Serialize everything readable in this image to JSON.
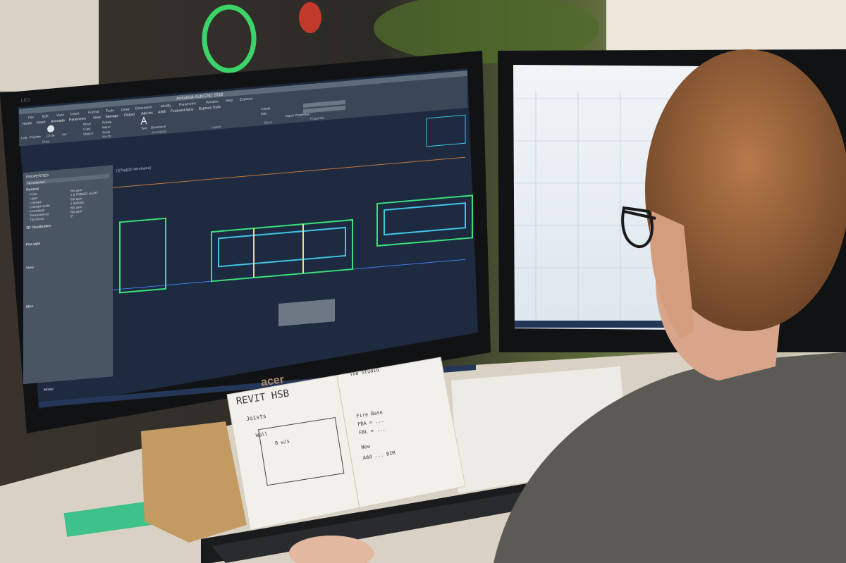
{
  "scene": {
    "monitor_left_brand": "acer",
    "monitor_left_bezel_label": "LED",
    "colors": {
      "cad_background": "#1d2a40",
      "wireframe_green": "#39e07a",
      "wireframe_cyan": "#3fc6e8",
      "ribbon": "#3b4756",
      "desk": "#d9d2c4",
      "wall": "#e8e2d6"
    }
  },
  "cad": {
    "title": "Autodesk AutoCAD 2018",
    "menu": [
      "File",
      "Edit",
      "View",
      "Insert",
      "Format",
      "Tools",
      "Draw",
      "Dimension",
      "Modify",
      "Parametric",
      "Window",
      "Help",
      "Express"
    ],
    "tabs": [
      "Home",
      "Insert",
      "Annotate",
      "Parametric",
      "View",
      "Manage",
      "Output",
      "Add-ins",
      "A360",
      "Featured Apps",
      "Express Tools"
    ],
    "panels": [
      "Draw",
      "Modify",
      "Annotation",
      "Layers",
      "Block",
      "Properties"
    ],
    "tools": [
      "Line",
      "Polyline",
      "Circle",
      "Arc",
      "Move",
      "Copy",
      "Stretch",
      "Rotate",
      "Mirror",
      "Scale",
      "Text",
      "Dimension",
      "Create",
      "Edit",
      "Match Properties"
    ],
    "viewport_label": "[-][Top][2D Wireframe]",
    "properties": {
      "title": "PROPERTIES",
      "selection": "No selection",
      "sections": [
        "General",
        "3D Visualization",
        "Plot style",
        "View",
        "Misc"
      ],
      "rows": [
        "Color",
        "Layer",
        "Linetype",
        "Linetype scale",
        "Lineweight",
        "Transparency",
        "Thickness"
      ],
      "values": [
        "ByLayer",
        "1.0 TIMBER LIGHT",
        "ByLayer",
        "1.000000",
        "ByLayer",
        "ByLayer",
        "0\""
      ]
    },
    "status_tab": "Model"
  },
  "notebook": {
    "heading": "REVIT HSB",
    "left_notes": [
      "Joists",
      "Wall",
      "0 w/s"
    ],
    "right_notes": [
      "The Studio",
      "Fire Base",
      "FBA = ...",
      "FBL = ...",
      "New",
      "Add ... BIM"
    ]
  }
}
